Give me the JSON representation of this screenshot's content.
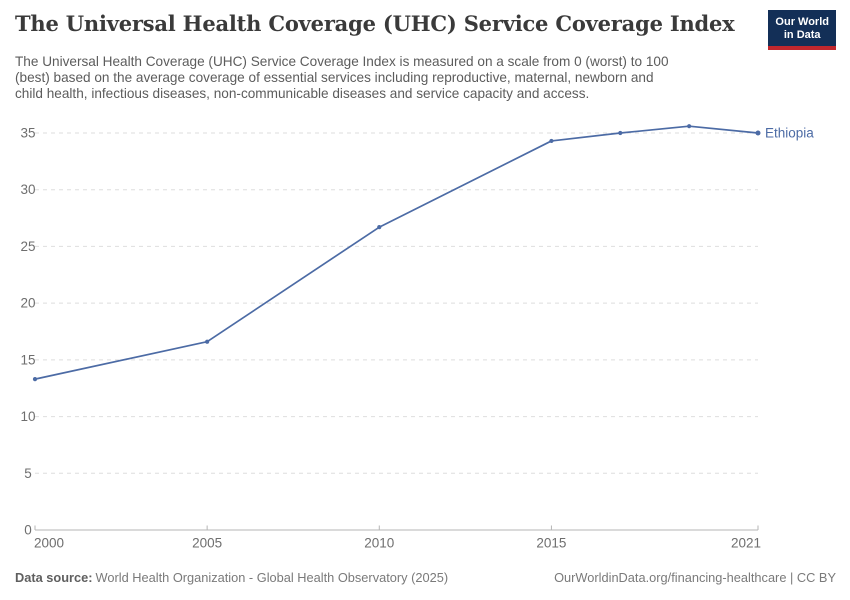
{
  "header": {
    "title": "The Universal Health Coverage (UHC) Service Coverage Index",
    "subtitle_lines": [
      "The Universal Health Coverage (UHC) Service Coverage Index is measured on a scale from 0 (worst) to 100",
      "(best) based on the average coverage of essential services including reproductive, maternal, newborn and",
      "child health, infectious diseases, non-communicable diseases and service capacity and access."
    ],
    "logo": {
      "line1": "Our World",
      "line2": "in Data"
    }
  },
  "chart_data": {
    "type": "line",
    "title": "The Universal Health Coverage (UHC) Service Coverage Index",
    "entity": "Ethiopia",
    "x": [
      2000,
      2005,
      2010,
      2015,
      2017,
      2019,
      2021
    ],
    "series": [
      {
        "name": "Ethiopia",
        "values": [
          13.3,
          16.6,
          26.7,
          34.3,
          35.0,
          35.6,
          35.0
        ]
      }
    ],
    "xlim": [
      2000,
      2021
    ],
    "ylim": [
      0,
      35
    ],
    "ytick_step": 5,
    "yticks": [
      0,
      5,
      10,
      15,
      20,
      25,
      30,
      35
    ],
    "xticks": [
      2000,
      2005,
      2010,
      2015,
      2021
    ],
    "grid": "horizontal-dashed",
    "markers": true,
    "legend": "end-of-line-label",
    "xlabel": "",
    "ylabel": ""
  },
  "footer": {
    "datasource_label": "Data source:",
    "datasource_text": "World Health Organization - Global Health Observatory (2025)",
    "link": "OurWorldinData.org/financing-healthcare | CC BY"
  },
  "colors": {
    "line": "#4c6ba5",
    "grid": "#dedede",
    "axis": "#b5b5b5",
    "tick_label": "#6e6e6e",
    "title": "#3a3a3a",
    "subtitle": "#5c5c5c",
    "footer": "#7a7a7a",
    "logo_bg": "#132f57",
    "logo_accent": "#c1272d"
  }
}
